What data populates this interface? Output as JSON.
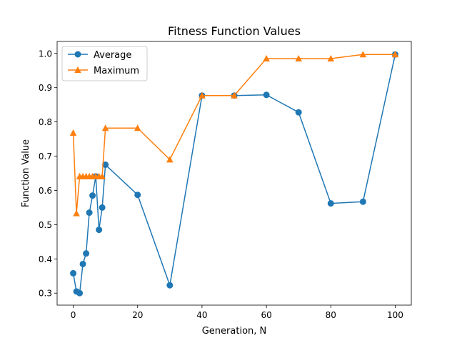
{
  "chart_data": {
    "type": "line",
    "title": "Fitness Function Values",
    "xlabel": "Generation, N",
    "ylabel": "Function Value",
    "xlim": [
      -5,
      105
    ],
    "ylim": [
      0.265,
      1.035
    ],
    "xticks": [
      0,
      20,
      40,
      60,
      80,
      100
    ],
    "yticks": [
      0.3,
      0.4,
      0.5,
      0.6,
      0.7,
      0.8,
      0.9,
      1.0
    ],
    "xtick_labels": [
      "0",
      "20",
      "40",
      "60",
      "80",
      "100"
    ],
    "ytick_labels": [
      "0.3",
      "0.4",
      "0.5",
      "0.6",
      "0.7",
      "0.8",
      "0.9",
      "1.0"
    ],
    "grid": false,
    "legend_position": "top-left",
    "series": [
      {
        "name": "Average",
        "color": "#1f77b4",
        "marker": "circle",
        "x": [
          0,
          1,
          2,
          3,
          4,
          5,
          6,
          7,
          8,
          9,
          10,
          20,
          30,
          40,
          50,
          60,
          70,
          80,
          90,
          100
        ],
        "y": [
          0.358,
          0.305,
          0.3,
          0.385,
          0.416,
          0.535,
          0.585,
          0.641,
          0.485,
          0.55,
          0.675,
          0.587,
          0.323,
          0.877,
          0.877,
          0.879,
          0.828,
          0.562,
          0.567,
          0.997
        ]
      },
      {
        "name": "Maximum",
        "color": "#ff7f0e",
        "marker": "triangle",
        "x": [
          0,
          1,
          2,
          3,
          4,
          5,
          6,
          7,
          8,
          9,
          10,
          20,
          30,
          40,
          50,
          60,
          70,
          80,
          90,
          100
        ],
        "y": [
          0.768,
          0.533,
          0.641,
          0.641,
          0.641,
          0.641,
          0.641,
          0.641,
          0.641,
          0.641,
          0.782,
          0.782,
          0.69,
          0.877,
          0.877,
          0.985,
          0.985,
          0.985,
          0.997,
          0.997
        ]
      }
    ]
  }
}
